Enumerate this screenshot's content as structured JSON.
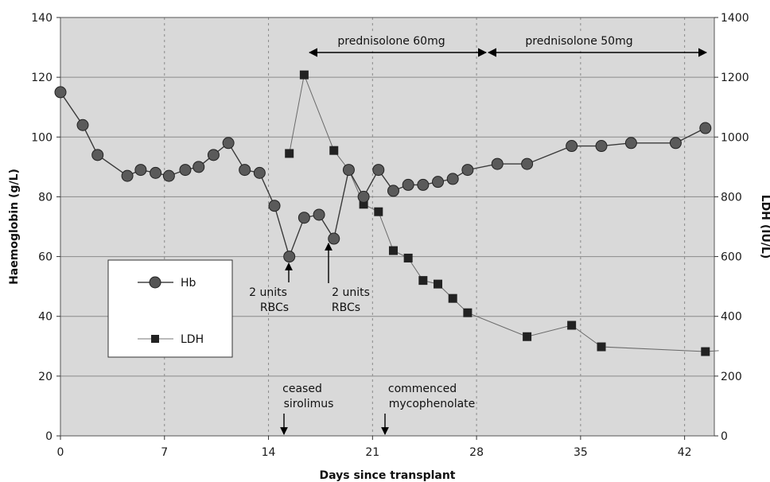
{
  "chart_data": {
    "type": "line",
    "xlabel": "Days since transplant",
    "ylabel_left": "Haemoglobin (g/L)",
    "ylabel_right": "LDH (IU/L)",
    "xlim": [
      0,
      44
    ],
    "ylim_left": [
      0,
      140
    ],
    "ylim_right": [
      0,
      1400
    ],
    "xticks": [
      "0",
      "7",
      "14",
      "21",
      "28",
      "35",
      "42"
    ],
    "yticks_left": [
      "0",
      "20",
      "40",
      "60",
      "80",
      "100",
      "120",
      "140"
    ],
    "yticks_right": [
      "0",
      "200",
      "400",
      "600",
      "800",
      "1000",
      "1200",
      "1400"
    ],
    "grid": "horizontal solid, vertical dashed",
    "background": "#d9d9d9",
    "legend_position": "left-middle",
    "series": [
      {
        "name": "Hb",
        "axis": "left",
        "marker": "circle",
        "x": [
          0,
          1.5,
          2.5,
          4.5,
          5.4,
          6.4,
          7.3,
          8.4,
          9.3,
          10.3,
          11.3,
          12.4,
          13.4,
          14.4,
          15.4,
          16.4,
          17.4,
          18.4,
          19.4,
          20.4,
          21.4,
          22.4,
          23.4,
          24.4,
          25.4,
          26.4,
          27.4,
          29.4,
          31.4,
          34.4,
          36.4,
          38.4,
          41.4,
          43.4
        ],
        "y": [
          115,
          104,
          94,
          87,
          89,
          88,
          87,
          89,
          90,
          94,
          98,
          89,
          88,
          77,
          60,
          73,
          74,
          66,
          89,
          80,
          89,
          82,
          84,
          84,
          85,
          86,
          89,
          91,
          91,
          97,
          97,
          98,
          98,
          103
        ]
      },
      {
        "name": "LDH",
        "axis": "right",
        "marker": "square",
        "x": [
          15.4,
          16.4,
          18.4,
          19.4,
          20.4,
          21.4,
          22.4,
          23.4,
          24.4,
          25.4,
          26.4,
          27.4,
          31.4,
          34.4,
          36.4,
          43.4,
          44.3
        ],
        "y": [
          945,
          1208,
          955,
          890,
          775,
          750,
          620,
          595,
          520,
          508,
          460,
          412,
          332,
          370,
          298,
          282,
          285
        ]
      }
    ],
    "annotations": {
      "rbc1": {
        "line1": "2 units",
        "line2": "RBCs"
      },
      "rbc2": {
        "line1": "2 units",
        "line2": "RBCs"
      },
      "sirolimus": {
        "line1": "ceased",
        "line2": "sirolimus"
      },
      "mycophenolate": {
        "line1": "commenced",
        "line2": "mycophenolate"
      },
      "pred60": "prednisolone 60mg",
      "pred50": "prednisolone 50mg"
    }
  }
}
